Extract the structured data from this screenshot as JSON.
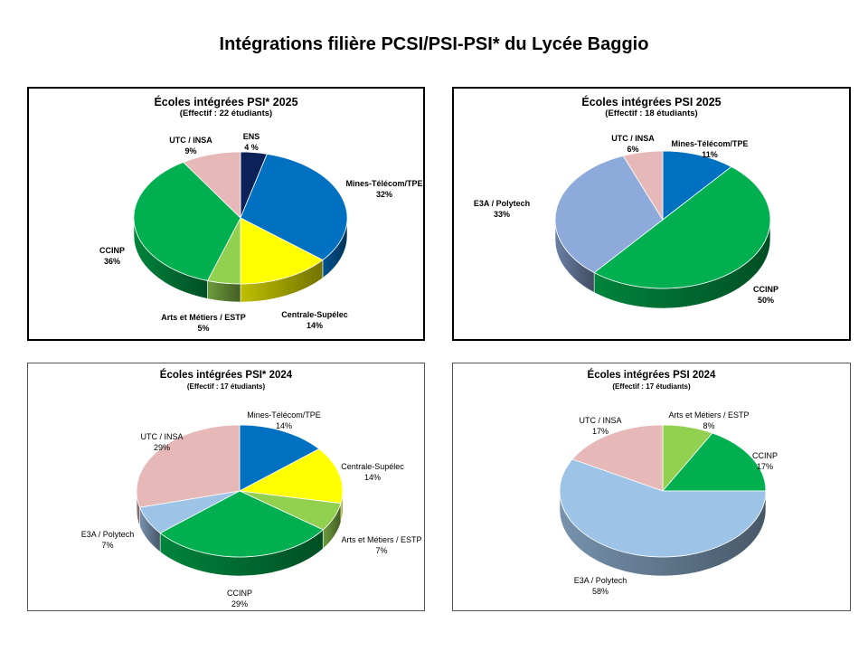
{
  "page": {
    "title": "Intégrations filière PCSI/PSI-PSI* du Lycée Baggio"
  },
  "chart_data": [
    {
      "type": "pie",
      "title": "Écoles intégrées PSI* 2025",
      "subtitle": "(Effectif : 22 étudiants)",
      "slices": [
        {
          "name": "ENS",
          "value": 4,
          "label": "4 %",
          "color": "#0b2158"
        },
        {
          "name": "Mines-Télécom/TPE",
          "value": 32,
          "label": "32%",
          "color": "#0070c0"
        },
        {
          "name": "Centrale-Supélec",
          "value": 14,
          "label": "14%",
          "color": "#ffff00"
        },
        {
          "name": "Arts et Métiers / ESTP",
          "value": 5,
          "label": "5%",
          "color": "#92d050"
        },
        {
          "name": "CCINP",
          "value": 36,
          "label": "36%",
          "color": "#00b050"
        },
        {
          "name": "UTC / INSA",
          "value": 9,
          "label": "9%",
          "color": "#e6b9b8"
        }
      ]
    },
    {
      "type": "pie",
      "title": "Écoles intégrées PSI 2025",
      "subtitle": "(Effectif : 18 étudiants)",
      "slices": [
        {
          "name": "Mines-Télécom/TPE",
          "value": 11,
          "label": "11%",
          "color": "#0070c0"
        },
        {
          "name": "CCINP",
          "value": 50,
          "label": "50%",
          "color": "#00b050"
        },
        {
          "name": "E3A / Polytech",
          "value": 33,
          "label": "33%",
          "color": "#8eaadb"
        },
        {
          "name": "UTC / INSA",
          "value": 6,
          "label": "6%",
          "color": "#e6b9b8"
        }
      ]
    },
    {
      "type": "pie",
      "title": "Écoles intégrées PSI* 2024",
      "subtitle": "(Effectif : 17 étudiants)",
      "slices": [
        {
          "name": "Mines-Télécom/TPE",
          "value": 14,
          "label": "14%",
          "color": "#0070c0"
        },
        {
          "name": "Centrale-Supélec",
          "value": 14,
          "label": "14%",
          "color": "#ffff00"
        },
        {
          "name": "Arts et Métiers / ESTP",
          "value": 7,
          "label": "7%",
          "color": "#92d050"
        },
        {
          "name": "CCINP",
          "value": 29,
          "label": "29%",
          "color": "#00b050"
        },
        {
          "name": "E3A / Polytech",
          "value": 7,
          "label": "7%",
          "color": "#9dc3e6"
        },
        {
          "name": "UTC / INSA",
          "value": 29,
          "label": "29%",
          "color": "#e6b9b8"
        }
      ]
    },
    {
      "type": "pie",
      "title": "Écoles intégrées PSI 2024",
      "subtitle": "(Effectif : 17 étudiants)",
      "slices": [
        {
          "name": "Arts et Métiers / ESTP",
          "value": 8,
          "label": "8%",
          "color": "#92d050"
        },
        {
          "name": "CCINP",
          "value": 17,
          "label": "17%",
          "color": "#00b050"
        },
        {
          "name": "E3A / Polytech",
          "value": 58,
          "label": "58%",
          "color": "#9dc3e6"
        },
        {
          "name": "UTC / INSA",
          "value": 17,
          "label": "17%",
          "color": "#e6b9b8"
        }
      ]
    }
  ]
}
